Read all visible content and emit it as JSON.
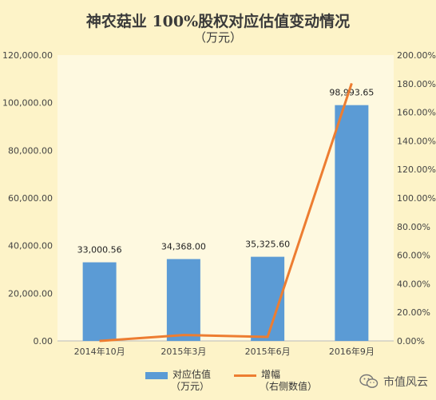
{
  "chart_data": {
    "type": "bar",
    "title": "神农菇业 100%股权对应估值变动情况",
    "subtitle": "（万元）",
    "categories": [
      "2014年10月",
      "2015年3月",
      "2015年6月",
      "2016年9月"
    ],
    "series": [
      {
        "name": "对应估值（万元）",
        "type": "bar",
        "axis": "left",
        "color": "#5b9bd5",
        "values": [
          33000.56,
          34368.0,
          35325.6,
          98993.65
        ],
        "labels": [
          "33,000.56",
          "34,368.00",
          "35,325.60",
          "98,993.65"
        ]
      },
      {
        "name": "增幅（右侧数值）",
        "type": "line",
        "axis": "right",
        "color": "#ed7d31",
        "values": [
          0.0,
          4.14,
          2.79,
          180.24
        ]
      }
    ],
    "y_left": {
      "ylim": [
        0,
        120000
      ],
      "ticks": [
        "0.00",
        "20,000.00",
        "40,000.00",
        "60,000.00",
        "80,000.00",
        "100,000.00",
        "120,000.00"
      ]
    },
    "y_right": {
      "ylim": [
        0,
        200
      ],
      "unit": "%",
      "ticks": [
        "0.00%",
        "20.00%",
        "40.00%",
        "60.00%",
        "80.00%",
        "100.00%",
        "120.00%",
        "140.00%",
        "160.00%",
        "180.00%",
        "200.00%"
      ]
    },
    "grid": false,
    "legend": "bottom"
  },
  "legend": {
    "bar_label_1": "对应估值",
    "bar_label_2": "（万元）",
    "line_label_1": "增幅",
    "line_label_2": "（右侧数值）"
  },
  "watermark": {
    "text": "市值风云",
    "icon": "wechat-icon"
  }
}
